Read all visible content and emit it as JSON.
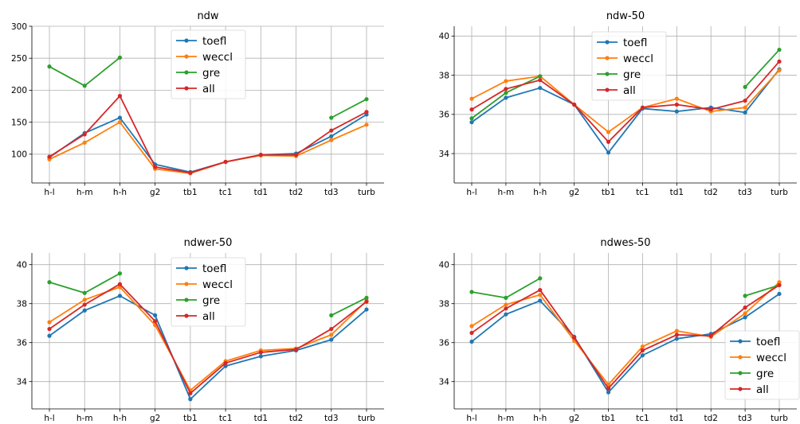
{
  "chart_data": [
    {
      "type": "line",
      "title": "ndw",
      "categories": [
        "h-l",
        "h-m",
        "h-h",
        "g2",
        "tb1",
        "tc1",
        "td1",
        "td2",
        "td3",
        "turb"
      ],
      "ylim": [
        55,
        300
      ],
      "yticks": [
        100,
        150,
        200,
        250,
        300
      ],
      "grid": true,
      "legend_position": "top-center",
      "series": [
        {
          "name": "toefl",
          "color": "#1f77b4",
          "values": [
            95,
            133,
            157,
            84,
            72,
            88,
            99,
            101,
            128,
            162
          ]
        },
        {
          "name": "weccl",
          "color": "#ff7f0e",
          "values": [
            92,
            118,
            150,
            77,
            70,
            88,
            98,
            97,
            122,
            146
          ]
        },
        {
          "name": "gre",
          "color": "#2ca02c",
          "values": [
            237,
            207,
            251,
            null,
            null,
            null,
            null,
            null,
            157,
            186
          ]
        },
        {
          "name": "all",
          "color": "#d62728",
          "values": [
            96,
            131,
            191,
            80,
            71,
            88,
            99,
            99,
            137,
            166
          ]
        }
      ]
    },
    {
      "type": "line",
      "title": "ndw-50",
      "categories": [
        "h-l",
        "h-m",
        "h-h",
        "g2",
        "tb1",
        "tc1",
        "td1",
        "td2",
        "td3",
        "turb"
      ],
      "ylim": [
        32.5,
        40.5
      ],
      "yticks": [
        34,
        36,
        38,
        40
      ],
      "grid": true,
      "legend_position": "top-center",
      "series": [
        {
          "name": "toefl",
          "color": "#1f77b4",
          "values": [
            35.6,
            36.85,
            37.35,
            36.5,
            34.05,
            36.3,
            36.15,
            36.35,
            36.1,
            38.3
          ]
        },
        {
          "name": "weccl",
          "color": "#ff7f0e",
          "values": [
            36.8,
            37.7,
            37.95,
            36.5,
            35.1,
            36.35,
            36.8,
            36.15,
            36.35,
            38.25
          ]
        },
        {
          "name": "gre",
          "color": "#2ca02c",
          "values": [
            35.8,
            37.1,
            37.95,
            null,
            null,
            null,
            null,
            null,
            37.4,
            39.3
          ]
        },
        {
          "name": "all",
          "color": "#d62728",
          "values": [
            36.25,
            37.3,
            37.75,
            36.5,
            34.6,
            36.35,
            36.5,
            36.25,
            36.7,
            38.7
          ]
        }
      ]
    },
    {
      "type": "line",
      "title": "ndwer-50",
      "categories": [
        "h-l",
        "h-m",
        "h-h",
        "g2",
        "tb1",
        "tc1",
        "td1",
        "td2",
        "td3",
        "turb"
      ],
      "ylim": [
        32.6,
        40.6
      ],
      "yticks": [
        34,
        36,
        38,
        40
      ],
      "grid": true,
      "legend_position": "top-center",
      "series": [
        {
          "name": "toefl",
          "color": "#1f77b4",
          "values": [
            36.35,
            37.65,
            38.4,
            37.4,
            33.1,
            34.8,
            35.3,
            35.6,
            36.15,
            37.7
          ]
        },
        {
          "name": "weccl",
          "color": "#ff7f0e",
          "values": [
            37.05,
            38.2,
            38.85,
            36.9,
            33.55,
            35.05,
            35.6,
            35.7,
            36.4,
            38.15
          ]
        },
        {
          "name": "gre",
          "color": "#2ca02c",
          "values": [
            39.1,
            38.55,
            39.55,
            null,
            null,
            null,
            null,
            null,
            37.4,
            38.3
          ]
        },
        {
          "name": "all",
          "color": "#d62728",
          "values": [
            36.7,
            37.95,
            39.0,
            37.1,
            33.4,
            34.95,
            35.5,
            35.65,
            36.7,
            38.1
          ]
        }
      ]
    },
    {
      "type": "line",
      "title": "ndwes-50",
      "categories": [
        "h-l",
        "h-m",
        "h-h",
        "g2",
        "tb1",
        "tc1",
        "td1",
        "td2",
        "td3",
        "turb"
      ],
      "ylim": [
        32.6,
        40.6
      ],
      "yticks": [
        34,
        36,
        38,
        40
      ],
      "grid": true,
      "legend_position": "lower-right",
      "series": [
        {
          "name": "toefl",
          "color": "#1f77b4",
          "values": [
            36.05,
            37.45,
            38.15,
            36.3,
            33.45,
            35.35,
            36.2,
            36.45,
            37.3,
            38.5
          ]
        },
        {
          "name": "weccl",
          "color": "#ff7f0e",
          "values": [
            36.85,
            37.95,
            38.45,
            36.1,
            33.85,
            35.8,
            36.6,
            36.3,
            37.5,
            39.1
          ]
        },
        {
          "name": "gre",
          "color": "#2ca02c",
          "values": [
            38.6,
            38.3,
            39.3,
            null,
            null,
            null,
            null,
            null,
            38.4,
            38.95
          ]
        },
        {
          "name": "all",
          "color": "#d62728",
          "values": [
            36.5,
            37.75,
            38.7,
            36.25,
            33.65,
            35.6,
            36.4,
            36.35,
            37.8,
            38.95
          ]
        }
      ]
    }
  ]
}
